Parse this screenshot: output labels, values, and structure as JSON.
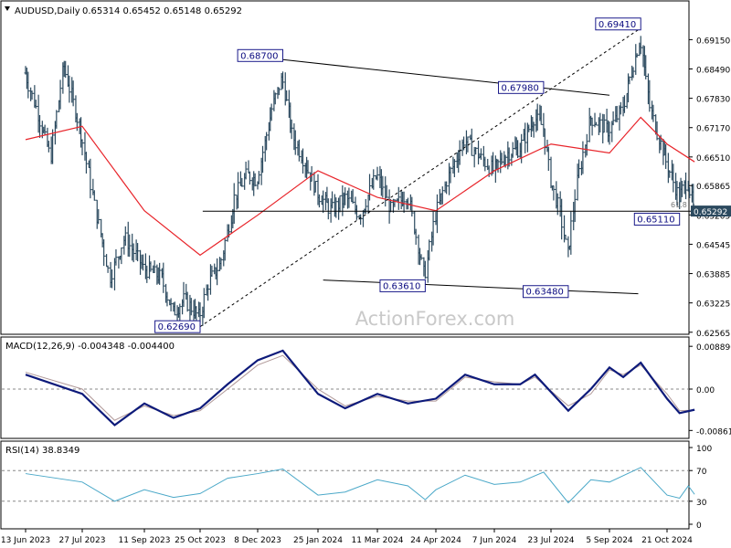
{
  "chart_data": {
    "type": "line",
    "symbol_label": "AUDUSD,Daily",
    "ohlc_label": "0.65314 0.65452 0.65148 0.65292",
    "watermark": "ActionForex.com",
    "x_axis_labels": [
      "13 Jun 2023",
      "27 Jul 2023",
      "11 Sep 2023",
      "25 Oct 2023",
      "8 Dec 2023",
      "25 Jan 2024",
      "11 Mar 2024",
      "24 Apr 2024",
      "7 Jun 2024",
      "23 Jul 2024",
      "5 Sep 2024",
      "21 Oct 2024"
    ],
    "price_panel": {
      "ylim": [
        0.6256,
        0.6996
      ],
      "y_ticks": [
        "0.69150",
        "0.68490",
        "0.67830",
        "0.67170",
        "0.66510",
        "0.65865",
        "0.65205",
        "0.64545",
        "0.63885",
        "0.63225",
        "0.62565"
      ],
      "current_price_label": "0.65292",
      "current_price": 0.65292,
      "fib_label": "61.8",
      "close_series": [
        {
          "date": "13 Jun 2023",
          "value": 0.684
        },
        {
          "date": "22 Jun 2023",
          "value": 0.676
        },
        {
          "date": "3 Jul 2023",
          "value": 0.665
        },
        {
          "date": "13 Jul 2023",
          "value": 0.686
        },
        {
          "date": "27 Jul 2023",
          "value": 0.67
        },
        {
          "date": "7 Aug 2023",
          "value": 0.652
        },
        {
          "date": "17 Aug 2023",
          "value": 0.638
        },
        {
          "date": "28 Aug 2023",
          "value": 0.647
        },
        {
          "date": "11 Sep 2023",
          "value": 0.64
        },
        {
          "date": "25 Sep 2023",
          "value": 0.638
        },
        {
          "date": "4 Oct 2023",
          "value": 0.63
        },
        {
          "date": "13 Oct 2023",
          "value": 0.633
        },
        {
          "date": "25 Oct 2023",
          "value": 0.629
        },
        {
          "date": "1 Nov 2023",
          "value": 0.637
        },
        {
          "date": "10 Nov 2023",
          "value": 0.641
        },
        {
          "date": "21 Nov 2023",
          "value": 0.656
        },
        {
          "date": "30 Nov 2023",
          "value": 0.661
        },
        {
          "date": "8 Dec 2023",
          "value": 0.66
        },
        {
          "date": "20 Dec 2023",
          "value": 0.676
        },
        {
          "date": "28 Dec 2023",
          "value": 0.683
        },
        {
          "date": "5 Jan 2024",
          "value": 0.67
        },
        {
          "date": "15 Jan 2024",
          "value": 0.664
        },
        {
          "date": "25 Jan 2024",
          "value": 0.657
        },
        {
          "date": "5 Feb 2024",
          "value": 0.653
        },
        {
          "date": "16 Feb 2024",
          "value": 0.656
        },
        {
          "date": "27 Feb 2024",
          "value": 0.652
        },
        {
          "date": "11 Mar 2024",
          "value": 0.661
        },
        {
          "date": "22 Mar 2024",
          "value": 0.653
        },
        {
          "date": "3 Apr 2024",
          "value": 0.657
        },
        {
          "date": "16 Apr 2024",
          "value": 0.638
        },
        {
          "date": "24 Apr 2024",
          "value": 0.652
        },
        {
          "date": "3 May 2024",
          "value": 0.66
        },
        {
          "date": "16 May 2024",
          "value": 0.669
        },
        {
          "date": "28 May 2024",
          "value": 0.665
        },
        {
          "date": "7 Jun 2024",
          "value": 0.662
        },
        {
          "date": "18 Jun 2024",
          "value": 0.666
        },
        {
          "date": "28 Jun 2024",
          "value": 0.667
        },
        {
          "date": "10 Jul 2024",
          "value": 0.674
        },
        {
          "date": "17 Jul 2024",
          "value": 0.672
        },
        {
          "date": "23 Jul 2024",
          "value": 0.66
        },
        {
          "date": "30 Jul 2024",
          "value": 0.653
        },
        {
          "date": "5 Aug 2024",
          "value": 0.643
        },
        {
          "date": "12 Aug 2024",
          "value": 0.659
        },
        {
          "date": "22 Aug 2024",
          "value": 0.674
        },
        {
          "date": "5 Sep 2024",
          "value": 0.671
        },
        {
          "date": "16 Sep 2024",
          "value": 0.676
        },
        {
          "date": "30 Sep 2024",
          "value": 0.692
        },
        {
          "date": "8 Oct 2024",
          "value": 0.676
        },
        {
          "date": "21 Oct 2024",
          "value": 0.664
        },
        {
          "date": "31 Oct 2024",
          "value": 0.656
        },
        {
          "date": "7 Nov 2024",
          "value": 0.66
        },
        {
          "date": "12 Nov 2024",
          "value": 0.653
        }
      ],
      "ma_series": [
        {
          "date": "13 Jun 2023",
          "value": 0.669
        },
        {
          "date": "27 Jul 2023",
          "value": 0.672
        },
        {
          "date": "11 Sep 2023",
          "value": 0.653
        },
        {
          "date": "25 Oct 2023",
          "value": 0.643
        },
        {
          "date": "8 Dec 2023",
          "value": 0.652
        },
        {
          "date": "25 Jan 2024",
          "value": 0.662
        },
        {
          "date": "11 Mar 2024",
          "value": 0.656
        },
        {
          "date": "24 Apr 2024",
          "value": 0.653
        },
        {
          "date": "7 Jun 2024",
          "value": 0.662
        },
        {
          "date": "23 Jul 2024",
          "value": 0.668
        },
        {
          "date": "5 Sep 2024",
          "value": 0.666
        },
        {
          "date": "30 Sep 2024",
          "value": 0.674
        },
        {
          "date": "21 Oct 2024",
          "value": 0.668
        },
        {
          "date": "12 Nov 2024",
          "value": 0.664
        }
      ],
      "annotations": [
        {
          "text": "0.68700",
          "date": "28 Dec 2023",
          "value": 0.687
        },
        {
          "text": "0.67980",
          "date": "17 Jul 2024",
          "value": 0.6798
        },
        {
          "text": "0.69410",
          "date": "30 Sep 2024",
          "value": 0.6941
        },
        {
          "text": "0.62690",
          "date": "25 Oct 2023",
          "value": 0.6269
        },
        {
          "text": "0.63610",
          "date": "16 Apr 2024",
          "value": 0.6361
        },
        {
          "text": "0.63480",
          "date": "5 Aug 2024",
          "value": 0.6348
        },
        {
          "text": "0.65110",
          "date": "31 Oct 2024",
          "value": 0.6511
        }
      ],
      "trendlines": [
        {
          "style": "solid",
          "from": {
            "date": "28 Dec 2023",
            "value": 0.687
          },
          "to": {
            "date": "5 Sep 2024",
            "value": 0.679
          }
        },
        {
          "style": "solid",
          "from": {
            "date": "29 Jan 2024",
            "value": 0.6374
          },
          "to": {
            "date": "28 Sep 2024",
            "value": 0.6343
          }
        },
        {
          "style": "dashed",
          "from": {
            "date": "25 Oct 2023",
            "value": 0.6269
          },
          "to": {
            "date": "30 Sep 2024",
            "value": 0.6941
          }
        },
        {
          "style": "solid",
          "from": {
            "date": "27 Oct 2023",
            "value": 0.6529
          },
          "to": {
            "date": "12 Nov 2024",
            "value": 0.6529
          }
        }
      ]
    },
    "macd_panel": {
      "label": "MACD(12,26,9) -0.004348 -0.004400",
      "ylim": [
        -0.0095,
        0.0095
      ],
      "y_ticks": [
        "0.008896",
        "0.00",
        "-0.008612"
      ],
      "macd_series": [
        {
          "date": "13 Jun 2023",
          "value": 0.003
        },
        {
          "date": "27 Jul 2023",
          "value": -0.001
        },
        {
          "date": "20 Aug 2023",
          "value": -0.0075
        },
        {
          "date": "11 Sep 2023",
          "value": -0.003
        },
        {
          "date": "4 Oct 2023",
          "value": -0.006
        },
        {
          "date": "25 Oct 2023",
          "value": -0.004
        },
        {
          "date": "15 Nov 2023",
          "value": 0.001
        },
        {
          "date": "8 Dec 2023",
          "value": 0.006
        },
        {
          "date": "28 Dec 2023",
          "value": 0.008
        },
        {
          "date": "25 Jan 2024",
          "value": -0.001
        },
        {
          "date": "15 Feb 2024",
          "value": -0.004
        },
        {
          "date": "11 Mar 2024",
          "value": -0.001
        },
        {
          "date": "3 Apr 2024",
          "value": -0.003
        },
        {
          "date": "24 Apr 2024",
          "value": -0.002
        },
        {
          "date": "16 May 2024",
          "value": 0.003
        },
        {
          "date": "7 Jun 2024",
          "value": 0.001
        },
        {
          "date": "28 Jun 2024",
          "value": 0.001
        },
        {
          "date": "10 Jul 2024",
          "value": 0.003
        },
        {
          "date": "5 Aug 2024",
          "value": -0.0045
        },
        {
          "date": "22 Aug 2024",
          "value": 0.0
        },
        {
          "date": "5 Sep 2024",
          "value": 0.0045
        },
        {
          "date": "16 Sep 2024",
          "value": 0.0025
        },
        {
          "date": "30 Sep 2024",
          "value": 0.0055
        },
        {
          "date": "21 Oct 2024",
          "value": -0.002
        },
        {
          "date": "31 Oct 2024",
          "value": -0.005
        },
        {
          "date": "12 Nov 2024",
          "value": -0.0043
        }
      ],
      "signal_series": [
        {
          "date": "13 Jun 2023",
          "value": 0.0035
        },
        {
          "date": "27 Jul 2023",
          "value": 0.0
        },
        {
          "date": "20 Aug 2023",
          "value": -0.0065
        },
        {
          "date": "11 Sep 2023",
          "value": -0.0035
        },
        {
          "date": "4 Oct 2023",
          "value": -0.0055
        },
        {
          "date": "25 Oct 2023",
          "value": -0.0045
        },
        {
          "date": "15 Nov 2023",
          "value": 0.0
        },
        {
          "date": "8 Dec 2023",
          "value": 0.005
        },
        {
          "date": "28 Dec 2023",
          "value": 0.007
        },
        {
          "date": "25 Jan 2024",
          "value": 0.0
        },
        {
          "date": "15 Feb 2024",
          "value": -0.0035
        },
        {
          "date": "11 Mar 2024",
          "value": -0.0015
        },
        {
          "date": "3 Apr 2024",
          "value": -0.0025
        },
        {
          "date": "24 Apr 2024",
          "value": -0.0025
        },
        {
          "date": "16 May 2024",
          "value": 0.0025
        },
        {
          "date": "7 Jun 2024",
          "value": 0.0015
        },
        {
          "date": "28 Jun 2024",
          "value": 0.001
        },
        {
          "date": "10 Jul 2024",
          "value": 0.0025
        },
        {
          "date": "5 Aug 2024",
          "value": -0.0035
        },
        {
          "date": "22 Aug 2024",
          "value": -0.001
        },
        {
          "date": "5 Sep 2024",
          "value": 0.004
        },
        {
          "date": "16 Sep 2024",
          "value": 0.003
        },
        {
          "date": "30 Sep 2024",
          "value": 0.005
        },
        {
          "date": "21 Oct 2024",
          "value": -0.001
        },
        {
          "date": "31 Oct 2024",
          "value": -0.0045
        },
        {
          "date": "12 Nov 2024",
          "value": -0.0044
        }
      ]
    },
    "rsi_panel": {
      "label": "RSI(14) 38.8349",
      "ylim": [
        0,
        100
      ],
      "y_ticks": [
        "100",
        "70",
        "30",
        "0"
      ],
      "levels": [
        70,
        30
      ],
      "rsi_series": [
        {
          "date": "13 Jun 2023",
          "value": 66
        },
        {
          "date": "27 Jul 2023",
          "value": 55
        },
        {
          "date": "20 Aug 2023",
          "value": 30
        },
        {
          "date": "11 Sep 2023",
          "value": 45
        },
        {
          "date": "4 Oct 2023",
          "value": 35
        },
        {
          "date": "25 Oct 2023",
          "value": 40
        },
        {
          "date": "15 Nov 2023",
          "value": 60
        },
        {
          "date": "8 Dec 2023",
          "value": 66
        },
        {
          "date": "28 Dec 2023",
          "value": 72
        },
        {
          "date": "25 Jan 2024",
          "value": 38
        },
        {
          "date": "15 Feb 2024",
          "value": 42
        },
        {
          "date": "11 Mar 2024",
          "value": 58
        },
        {
          "date": "3 Apr 2024",
          "value": 50
        },
        {
          "date": "16 Apr 2024",
          "value": 32
        },
        {
          "date": "24 Apr 2024",
          "value": 45
        },
        {
          "date": "16 May 2024",
          "value": 64
        },
        {
          "date": "7 Jun 2024",
          "value": 52
        },
        {
          "date": "28 Jun 2024",
          "value": 55
        },
        {
          "date": "17 Jul 2024",
          "value": 68
        },
        {
          "date": "5 Aug 2024",
          "value": 28
        },
        {
          "date": "22 Aug 2024",
          "value": 58
        },
        {
          "date": "5 Sep 2024",
          "value": 55
        },
        {
          "date": "30 Sep 2024",
          "value": 74
        },
        {
          "date": "21 Oct 2024",
          "value": 38
        },
        {
          "date": "31 Oct 2024",
          "value": 34
        },
        {
          "date": "7 Nov 2024",
          "value": 50
        },
        {
          "date": "12 Nov 2024",
          "value": 39
        }
      ]
    },
    "colors": {
      "price_bars": "#2c4a5f",
      "moving_average": "#e8242a",
      "macd_line": "#0d1a7a",
      "signal_line": "#b09898",
      "rsi_line": "#4aa8c8",
      "label_box_border": "#1a1a8a",
      "label_box_text": "#0a0a80",
      "current_price_box": "#2c4a5f"
    }
  }
}
